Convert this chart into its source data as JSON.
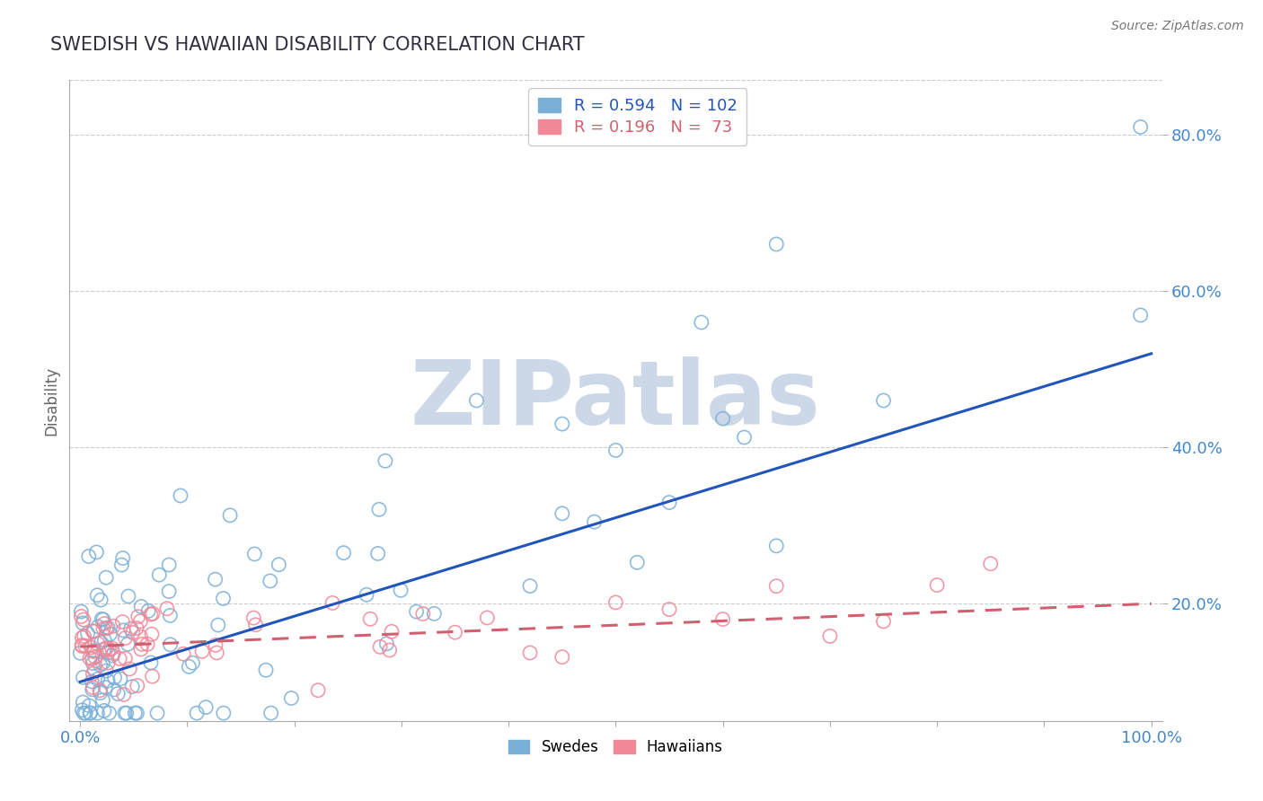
{
  "title": "SWEDISH VS HAWAIIAN DISABILITY CORRELATION CHART",
  "source": "Source: ZipAtlas.com",
  "ylabel": "Disability",
  "xlim": [
    -0.01,
    1.01
  ],
  "ylim": [
    0.05,
    0.87
  ],
  "xticks": [
    0.0,
    0.1,
    0.2,
    0.3,
    0.4,
    0.5,
    0.6,
    0.7,
    0.8,
    0.9,
    1.0
  ],
  "xtick_labels": [
    "0.0%",
    "",
    "",
    "",
    "",
    "",
    "",
    "",
    "",
    "",
    "100.0%"
  ],
  "yticks": [
    0.2,
    0.4,
    0.6,
    0.8
  ],
  "ytick_labels": [
    "20.0%",
    "40.0%",
    "60.0%",
    "80.0%"
  ],
  "swedes_label": "R = 0.594   N = 102",
  "hawaiians_label": "R = 0.196   N =  73",
  "blue_scatter_color": "#7ab0d8",
  "pink_scatter_color": "#f08898",
  "blue_line_color": "#2255bb",
  "pink_line_color": "#d06070",
  "grid_color": "#cccccc",
  "title_color": "#303040",
  "axis_label_color": "#4488cc",
  "watermark": "ZIPatlas",
  "watermark_color": "#ccd8e8",
  "background_color": "#ffffff",
  "legend_blue_text_color": "#2255bb",
  "legend_pink_text_color": "#d06070"
}
